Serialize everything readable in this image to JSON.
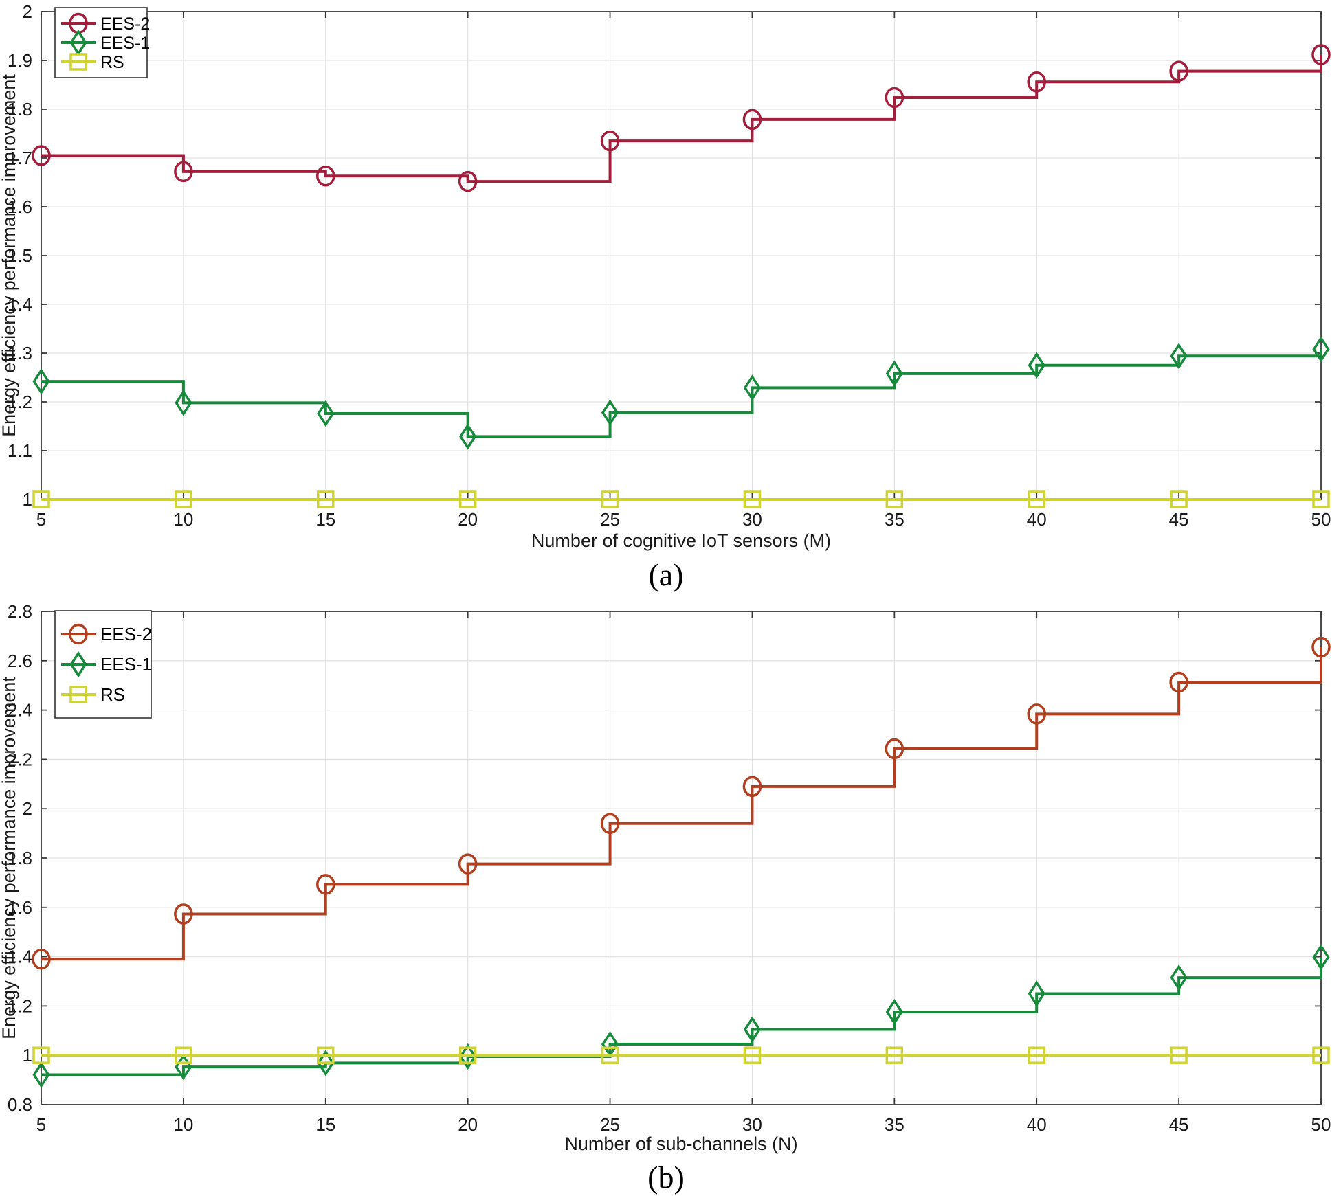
{
  "page": {
    "background": "#ffffff"
  },
  "colors": {
    "axis": "#3a3a3a",
    "grid": "#e3e3e3",
    "tick_text": "#1a1a1a",
    "legend_border": "#333333",
    "legend_bg": "#ffffff"
  },
  "chart_data": [
    {
      "type": "line",
      "subtype": "stairs-with-markers",
      "caption": "(a)",
      "title": "",
      "xlabel": "Number of cognitive IoT sensors (M)",
      "ylabel": "Energy efficiency performance improvement",
      "x": [
        5,
        10,
        15,
        20,
        25,
        30,
        35,
        40,
        45,
        50
      ],
      "xlim": [
        5,
        50
      ],
      "ylim": [
        1,
        2
      ],
      "xtick_step": 5,
      "ytick_step": 0.1,
      "grid": true,
      "legend_position": "top-left",
      "series": [
        {
          "name": "EES-2",
          "marker": "circle",
          "color": "#a41e3c",
          "values": [
            1.705,
            1.672,
            1.663,
            1.652,
            1.735,
            1.779,
            1.824,
            1.856,
            1.878,
            1.912
          ]
        },
        {
          "name": "EES-1",
          "marker": "diamond",
          "color": "#178b3c",
          "values": [
            1.242,
            1.198,
            1.176,
            1.129,
            1.178,
            1.229,
            1.258,
            1.275,
            1.294,
            1.308
          ]
        },
        {
          "name": "RS",
          "marker": "square",
          "color": "#d0d433",
          "values": [
            1.0,
            1.0,
            1.0,
            1.0,
            1.0,
            1.0,
            1.0,
            1.0,
            1.0,
            1.0
          ]
        }
      ]
    },
    {
      "type": "line",
      "subtype": "stairs-with-markers",
      "caption": "(b)",
      "title": "",
      "xlabel": "Number of sub-channels (N)",
      "ylabel": "Energy efficiency performance improvement",
      "x": [
        5,
        10,
        15,
        20,
        25,
        30,
        35,
        40,
        45,
        50
      ],
      "xlim": [
        5,
        50
      ],
      "ylim": [
        0.8,
        2.8
      ],
      "xtick_step": 5,
      "ytick_step": 0.2,
      "grid": true,
      "legend_position": "top-left",
      "series": [
        {
          "name": "EES-2",
          "marker": "circle",
          "color": "#b24020",
          "values": [
            1.39,
            1.573,
            1.693,
            1.776,
            1.94,
            2.09,
            2.243,
            2.384,
            2.513,
            2.655
          ]
        },
        {
          "name": "EES-1",
          "marker": "diamond",
          "color": "#178b3c",
          "values": [
            0.921,
            0.953,
            0.969,
            0.995,
            1.045,
            1.105,
            1.176,
            1.25,
            1.315,
            1.398
          ]
        },
        {
          "name": "RS",
          "marker": "square",
          "color": "#d0d433",
          "values": [
            1.0,
            1.0,
            1.0,
            1.0,
            1.0,
            1.0,
            1.0,
            1.0,
            1.0,
            1.0
          ]
        }
      ]
    }
  ]
}
